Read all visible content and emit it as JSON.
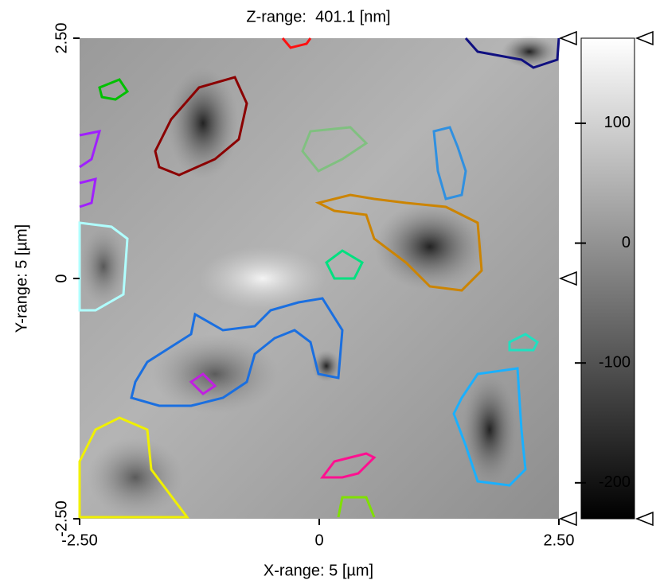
{
  "chart_data": {
    "type": "heatmap",
    "title": "Z-range:  401.1 [nm]",
    "x_label": "X-range: 5 [µm]",
    "y_label": "Y-range: 5 [µm]",
    "xlim": [
      -2.5,
      2.5
    ],
    "xticks": [
      {
        "value": -2.5,
        "label": "-2.50"
      },
      0,
      {
        "value": 2.5,
        "label": "2.50"
      }
    ],
    "ylim": [
      -2.5,
      2.5
    ],
    "yticks": [
      {
        "value": -2.5,
        "label": "-2.50"
      },
      0,
      {
        "value": 2.5,
        "label": "2.50"
      }
    ],
    "colorbar": {
      "lim": [
        -230,
        171
      ],
      "ticks": [
        -200,
        -100,
        0,
        100
      ]
    }
  }
}
